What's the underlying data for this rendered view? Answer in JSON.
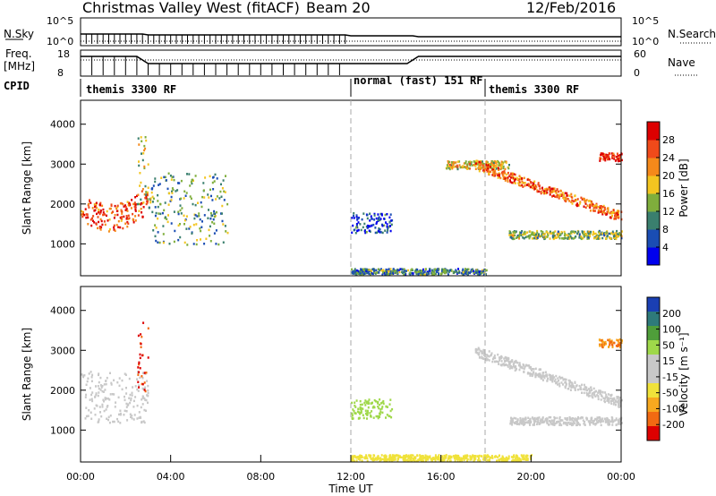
{
  "header": {
    "station": "Christmas Valley West (fitACF)",
    "beam": "Beam 20",
    "date": "12/Feb/2016"
  },
  "top_panels": {
    "nsky_label": "N.Sky",
    "nsky_ticks": [
      "10^5",
      "10^0"
    ],
    "nsearch_label": "N.Search",
    "nsearch_ticks": [
      "10^5",
      "10^0"
    ],
    "freq_label_1": "Freq.",
    "freq_label_2": "[MHz]",
    "freq_ticks": [
      "18",
      "8"
    ],
    "nave_label": "Nave",
    "nave_ticks": [
      "60",
      "0"
    ],
    "cpid_label": "CPID"
  },
  "cpid_segments": [
    {
      "label": "themis 3300 RF",
      "start": 0,
      "end": 12
    },
    {
      "label": "normal (fast) 151 RF",
      "start": 12,
      "end": 18
    },
    {
      "label": "themis 3300 RF",
      "start": 18,
      "end": 24
    }
  ],
  "colors": {
    "power_scale": [
      "#0000ee",
      "#1a4db3",
      "#3a7f6e",
      "#7fae3c",
      "#f3c520",
      "#f5891a",
      "#f04a1a",
      "#dd0000"
    ],
    "velocity_scale": [
      "#dd0000",
      "#f26a12",
      "#f7a81f",
      "#f0e23a",
      "#c8c8c8",
      "#c8c8c8",
      "#9fd84a",
      "#4f9e3a",
      "#2e7a7a",
      "#1a3fb3"
    ],
    "ground_gray": "#c8c8c8"
  },
  "chart_data": [
    {
      "type": "heatmap",
      "name": "power-panel",
      "ylabel": "Slant Range [km]",
      "y_ticks": [
        1000,
        2000,
        3000,
        4000
      ],
      "ylim": [
        200,
        4600
      ],
      "x_ticks": [
        "00:00",
        "04:00",
        "08:00",
        "12:00",
        "16:00",
        "20:00",
        "00:00"
      ],
      "xlim_hours": [
        0,
        24
      ],
      "colorbar": {
        "label": "Power [dB]",
        "ticks": [
          4,
          8,
          12,
          16,
          20,
          24,
          28
        ],
        "range": [
          0,
          32
        ]
      },
      "features": [
        {
          "desc": "early arc",
          "t": [
            0.0,
            3.0
          ],
          "range": [
            1200,
            2500
          ],
          "power": 26
        },
        {
          "desc": "pre-midnight spike",
          "t": [
            2.5,
            3.0
          ],
          "range": [
            2000,
            3900
          ],
          "power": 18
        },
        {
          "desc": "diffuse decay",
          "t": [
            3.0,
            6.5
          ],
          "range": [
            1000,
            2800
          ],
          "power": 12
        },
        {
          "desc": "post-midnight patch",
          "t": [
            12.0,
            13.8
          ],
          "range": [
            1300,
            1800
          ],
          "power": 6
        },
        {
          "desc": "morning band",
          "t": [
            16.2,
            19.0
          ],
          "range": [
            2900,
            3100
          ],
          "power": 18
        },
        {
          "desc": "descending band",
          "t": [
            17.5,
            24.0
          ],
          "range": [
            1700,
            3000
          ],
          "power": 24
        },
        {
          "desc": "lower band",
          "t": [
            19.0,
            24.0
          ],
          "range": [
            1150,
            1350
          ],
          "power": 14
        },
        {
          "desc": "late echoes",
          "t": [
            23.0,
            24.0
          ],
          "range": [
            3100,
            3300
          ],
          "power": 28
        },
        {
          "desc": "near range clutter",
          "t": [
            12.0,
            18.0
          ],
          "range": [
            250,
            400
          ],
          "power": 10
        }
      ]
    },
    {
      "type": "heatmap",
      "name": "velocity-panel",
      "ylabel": "Slant Range [km]",
      "xlabel": "Time UT",
      "y_ticks": [
        1000,
        2000,
        3000,
        4000
      ],
      "ylim": [
        200,
        4600
      ],
      "x_ticks": [
        "00:00",
        "04:00",
        "08:00",
        "12:00",
        "16:00",
        "20:00",
        "00:00"
      ],
      "xlim_hours": [
        0,
        24
      ],
      "colorbar": {
        "label": "Velocity [m s⁻¹]",
        "ticks": [
          "200",
          "100",
          "50",
          "15",
          "-15",
          "-50",
          "-100",
          "-200"
        ],
        "range": [
          -250,
          250
        ]
      },
      "features": [
        {
          "desc": "ground scatter arc",
          "t": [
            0.0,
            3.0
          ],
          "range": [
            1200,
            2500
          ],
          "velocity": 0
        },
        {
          "desc": "pre-midnight spike",
          "t": [
            2.5,
            3.0
          ],
          "range": [
            2000,
            3900
          ],
          "velocity": -200
        },
        {
          "desc": "post-midnight patch",
          "t": [
            12.0,
            13.8
          ],
          "range": [
            1300,
            1800
          ],
          "velocity": 80
        },
        {
          "desc": "descending ground band",
          "t": [
            17.5,
            24.0
          ],
          "range": [
            1700,
            3000
          ],
          "velocity": 0
        },
        {
          "desc": "lower ground band",
          "t": [
            19.0,
            24.0
          ],
          "range": [
            1150,
            1350
          ],
          "velocity": 0
        },
        {
          "desc": "late echoes",
          "t": [
            23.0,
            24.0
          ],
          "range": [
            3100,
            3300
          ],
          "velocity": -150
        },
        {
          "desc": "near range",
          "t": [
            12.0,
            20.0
          ],
          "range": [
            250,
            400
          ],
          "velocity": -60
        }
      ]
    }
  ]
}
